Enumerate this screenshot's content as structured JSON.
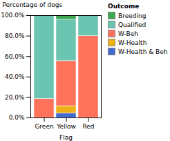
{
  "chart_data": {
    "type": "bar",
    "stacked": true,
    "xlabel": "Flag",
    "ylabel": "Percentage of dogs",
    "legend_title": "Outcome",
    "legend": "upper right",
    "categories": [
      "Green",
      "Yellow",
      "Red"
    ],
    "series": [
      {
        "name": "W-Health & Beh",
        "values": [
          0.0,
          4.5,
          0.0
        ]
      },
      {
        "name": "W-Health",
        "values": [
          0.0,
          7.0,
          0.0
        ]
      },
      {
        "name": "W-Beh",
        "values": [
          18.5,
          44.0,
          80.0
        ]
      },
      {
        "name": "Qualified",
        "values": [
          81.5,
          40.5,
          20.0
        ]
      },
      {
        "name": "Breeding",
        "values": [
          0.0,
          4.0,
          0.0
        ]
      }
    ],
    "ylim": [
      0,
      100
    ],
    "yticks": [
      {
        "value": 0,
        "label": "0.0%"
      },
      {
        "value": 20,
        "label": "20.0%"
      },
      {
        "value": 40,
        "label": "40.0%"
      },
      {
        "value": 60,
        "label": "60.0%"
      },
      {
        "value": 80,
        "label": "80.0%"
      },
      {
        "value": 100,
        "label": "100.0%"
      }
    ]
  }
}
